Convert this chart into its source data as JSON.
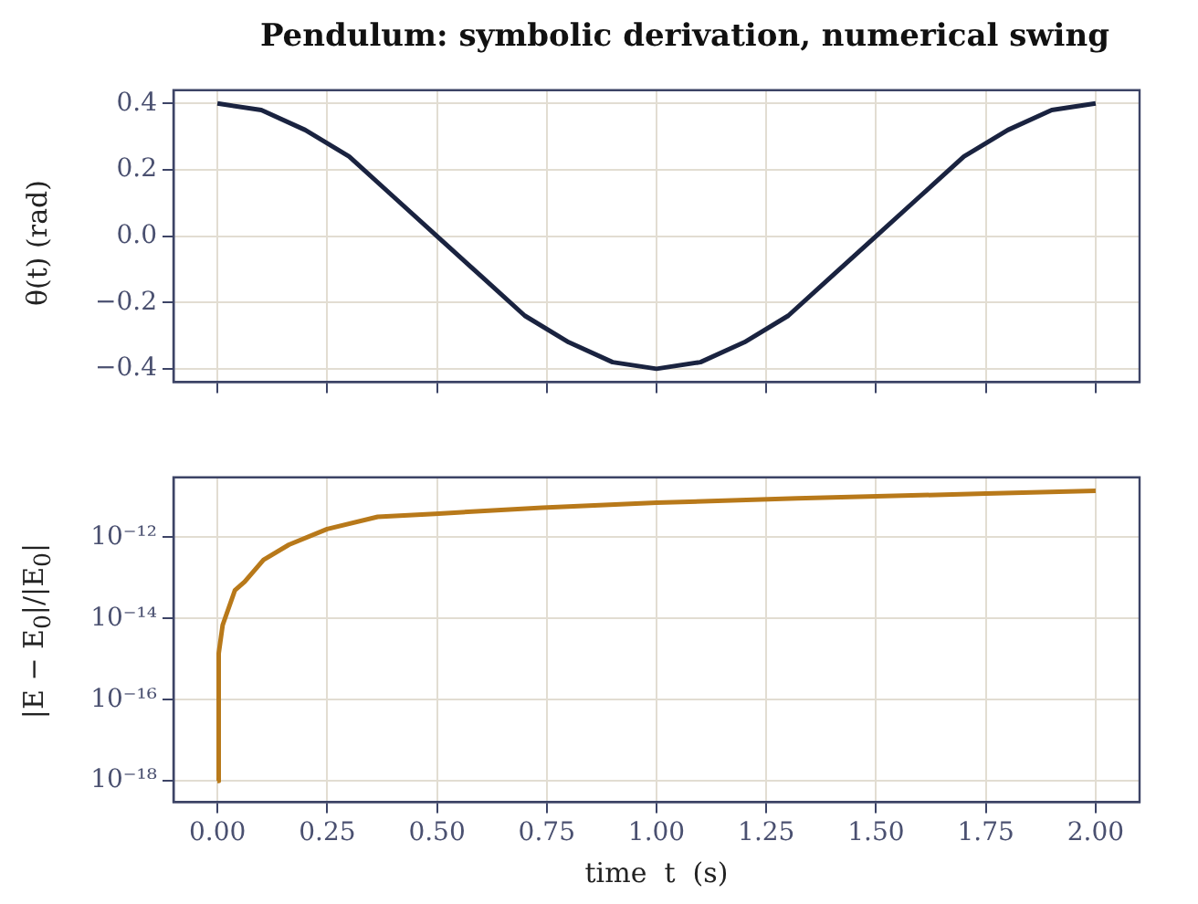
{
  "chart_data": [
    {
      "type": "line",
      "title": "Pendulum: symbolic derivation, numerical swing",
      "ylabel": "θ(t)  (rad)",
      "x": [
        0,
        0.1,
        0.2,
        0.3,
        0.4,
        0.5,
        0.6,
        0.7,
        0.8,
        0.9,
        1.0,
        1.1,
        1.2,
        1.3,
        1.4,
        1.5,
        1.6,
        1.7,
        1.8,
        1.9,
        2.0
      ],
      "series": [
        {
          "color": "#1a2340",
          "values": [
            0.4,
            0.38,
            0.32,
            0.24,
            0.12,
            0.0,
            -0.12,
            -0.24,
            -0.32,
            -0.38,
            -0.4,
            -0.38,
            -0.32,
            -0.24,
            -0.12,
            0.0,
            0.12,
            0.24,
            0.32,
            0.38,
            0.4
          ]
        }
      ],
      "xlim": [
        -0.1,
        2.1
      ],
      "xticks": [
        {
          "value": 0,
          "label": null
        },
        {
          "value": 0.25,
          "label": null
        },
        {
          "value": 0.5,
          "label": null
        },
        {
          "value": 0.75,
          "label": null
        },
        {
          "value": 1.0,
          "label": null
        },
        {
          "value": 1.25,
          "label": null
        },
        {
          "value": 1.5,
          "label": null
        },
        {
          "value": 1.75,
          "label": null
        },
        {
          "value": 2.0,
          "label": null
        }
      ],
      "ylim": [
        -0.44,
        0.44
      ],
      "yticks": [
        {
          "value": -0.4,
          "label": "−0.4"
        },
        {
          "value": -0.2,
          "label": "−0.2"
        },
        {
          "value": 0,
          "label": "0.0"
        },
        {
          "value": 0.2,
          "label": "0.2"
        },
        {
          "value": 0.4,
          "label": "0.4"
        }
      ],
      "grid": true,
      "tick_labels": "y",
      "legend": false
    },
    {
      "type": "line",
      "xlabel": "time  t  (s)",
      "ylabel": "|E − E$_{0}$|/|E$_{0}$|",
      "log": "y",
      "x": [
        0,
        0.003,
        0.012,
        0.04,
        0.062,
        0.105,
        0.163,
        0.25,
        0.365,
        0.495,
        0.74,
        1.0,
        1.32,
        1.75,
        2.0
      ],
      "series": [
        {
          "color": "#b8791a",
          "values": [
            1e-18,
            1.4e-15,
            6.9e-15,
            5e-14,
            8e-14,
            2.8e-13,
            6.6e-13,
            1.6e-12,
            3.2e-12,
            3.8e-12,
            5.4e-12,
            7.1e-12,
            9.1e-12,
            1.2e-11,
            1.4e-11
          ]
        }
      ],
      "xlim": [
        -0.1,
        2.1
      ],
      "xticks": [
        {
          "value": 0,
          "label": "0.00"
        },
        {
          "value": 0.25,
          "label": "0.25"
        },
        {
          "value": 0.5,
          "label": "0.50"
        },
        {
          "value": 0.75,
          "label": "0.75"
        },
        {
          "value": 1.0,
          "label": "1.00"
        },
        {
          "value": 1.25,
          "label": "1.25"
        },
        {
          "value": 1.5,
          "label": "1.50"
        },
        {
          "value": 1.75,
          "label": "1.75"
        },
        {
          "value": 2.0,
          "label": "2.00"
        }
      ],
      "ylim": [
        3e-19,
        3e-11
      ],
      "yticks": [
        {
          "value": 1e-18,
          "label": "10⁻¹⁸"
        },
        {
          "value": 1e-16,
          "label": "10⁻¹⁶"
        },
        {
          "value": 1e-14,
          "label": "10⁻¹⁴"
        },
        {
          "value": 1e-12,
          "label": "10⁻¹²"
        }
      ],
      "grid": true,
      "legend": false
    }
  ]
}
